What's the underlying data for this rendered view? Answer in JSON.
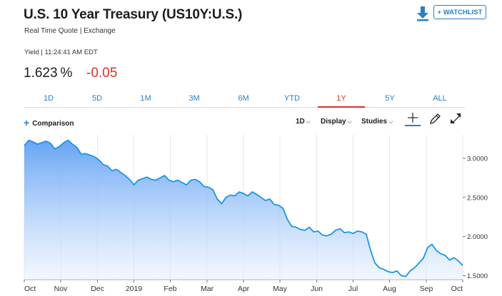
{
  "header": {
    "title": "U.S. 10 Year Treasury (US10Y:U.S.)",
    "subtitle": "Real Time Quote | Exchange",
    "watchlist_label": "+ WATCHLIST"
  },
  "quote": {
    "yield_label": "Yield | 11:24:41 AM EDT",
    "price": "1.623",
    "percent_sign": "%",
    "change": "-0.05"
  },
  "tabs": [
    {
      "label": "1D",
      "active": false
    },
    {
      "label": "5D",
      "active": false
    },
    {
      "label": "1M",
      "active": false
    },
    {
      "label": "3M",
      "active": false
    },
    {
      "label": "6M",
      "active": false
    },
    {
      "label": "YTD",
      "active": false
    },
    {
      "label": "1Y",
      "active": true
    },
    {
      "label": "5Y",
      "active": false
    },
    {
      "label": "ALL",
      "active": false
    }
  ],
  "toolbar": {
    "comparison_label": "Comparison",
    "interval_label": "1D",
    "display_label": "Display",
    "studies_label": "Studies",
    "icons": [
      "crosshair-icon",
      "draw-pencil-icon",
      "expand-icon"
    ]
  },
  "colors": {
    "accent": "#2a7ec7",
    "negative": "#d93025",
    "line": "#1a96e6",
    "fill_top": "#6aa8f5"
  },
  "chart_data": {
    "type": "area",
    "ylim": [
      1.45,
      3.3
    ],
    "yticks": [
      "3.0000",
      "2.5000",
      "2.0000",
      "1.5000"
    ],
    "ytick_values": [
      3.0,
      2.5,
      2.0,
      1.5
    ],
    "xticks": [
      "Oct",
      "Nov",
      "Dec",
      "2019",
      "Feb",
      "Mar",
      "Apr",
      "May",
      "Jun",
      "Jul",
      "Aug",
      "Sep",
      "Oct"
    ],
    "xtick_positions": [
      0.0,
      0.083,
      0.167,
      0.25,
      0.333,
      0.417,
      0.5,
      0.583,
      0.667,
      0.75,
      0.833,
      0.917,
      1.0
    ],
    "series": [
      {
        "x": [
          0.0,
          0.01,
          0.02,
          0.03,
          0.04,
          0.05,
          0.06,
          0.07,
          0.08,
          0.09,
          0.1,
          0.11,
          0.12,
          0.13,
          0.14,
          0.15,
          0.16,
          0.17,
          0.18,
          0.19,
          0.2,
          0.21,
          0.22,
          0.23,
          0.24,
          0.25,
          0.26,
          0.27,
          0.28,
          0.29,
          0.3,
          0.31,
          0.32,
          0.33,
          0.34,
          0.35,
          0.36,
          0.37,
          0.38,
          0.39,
          0.4,
          0.41,
          0.42,
          0.43,
          0.44,
          0.45,
          0.46,
          0.47,
          0.48,
          0.49,
          0.5,
          0.51,
          0.52,
          0.53,
          0.54,
          0.55,
          0.56,
          0.57,
          0.58,
          0.59,
          0.6,
          0.61,
          0.62,
          0.63,
          0.64,
          0.65,
          0.66,
          0.67,
          0.68,
          0.69,
          0.7,
          0.71,
          0.72,
          0.73,
          0.74,
          0.75,
          0.76,
          0.77,
          0.78,
          0.79,
          0.8,
          0.81,
          0.82,
          0.83,
          0.84,
          0.85,
          0.86,
          0.87,
          0.88,
          0.89,
          0.9,
          0.91,
          0.92,
          0.93,
          0.94,
          0.95,
          0.96,
          0.97,
          0.98,
          0.99,
          1.0
        ],
        "values": [
          3.16,
          3.23,
          3.21,
          3.18,
          3.2,
          3.22,
          3.19,
          3.12,
          3.15,
          3.2,
          3.23,
          3.18,
          3.14,
          3.05,
          3.06,
          3.04,
          3.02,
          2.98,
          2.92,
          2.9,
          2.84,
          2.86,
          2.82,
          2.78,
          2.73,
          2.66,
          2.72,
          2.74,
          2.76,
          2.73,
          2.72,
          2.75,
          2.78,
          2.72,
          2.7,
          2.72,
          2.69,
          2.66,
          2.72,
          2.73,
          2.7,
          2.64,
          2.63,
          2.6,
          2.48,
          2.42,
          2.5,
          2.53,
          2.52,
          2.57,
          2.55,
          2.52,
          2.57,
          2.54,
          2.5,
          2.46,
          2.48,
          2.41,
          2.4,
          2.36,
          2.22,
          2.13,
          2.12,
          2.09,
          2.08,
          2.12,
          2.06,
          2.07,
          2.02,
          2.01,
          2.03,
          2.08,
          2.1,
          2.05,
          2.06,
          2.04,
          2.07,
          2.06,
          2.03,
          1.82,
          1.66,
          1.6,
          1.58,
          1.55,
          1.54,
          1.56,
          1.5,
          1.49,
          1.56,
          1.6,
          1.66,
          1.72,
          1.86,
          1.9,
          1.82,
          1.78,
          1.76,
          1.7,
          1.73,
          1.69,
          1.63
        ]
      }
    ]
  }
}
